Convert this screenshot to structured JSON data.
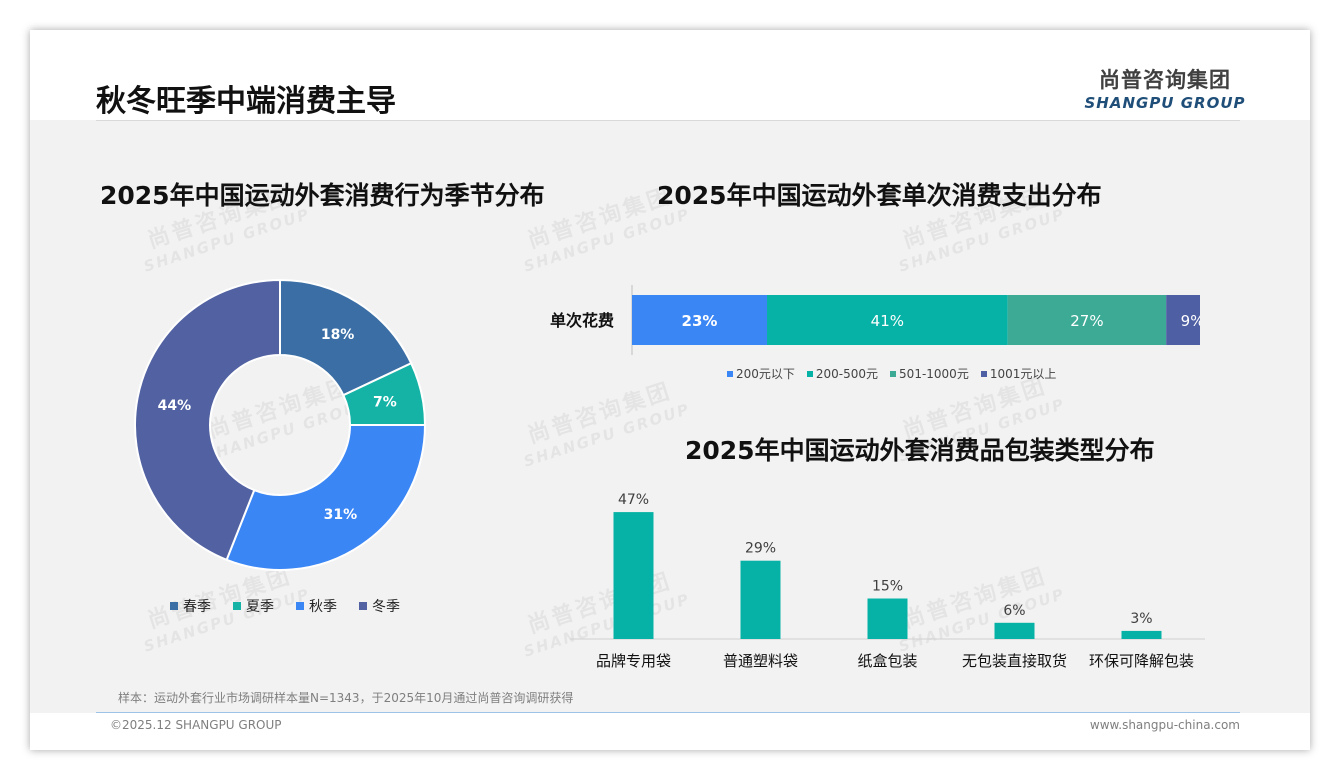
{
  "header": {
    "title": "秋冬旺季中端消费主导",
    "logo_cn": "尚普咨询集团",
    "logo_en": "SHANGPU GROUP"
  },
  "watermark": {
    "cn": "尚普咨询集团",
    "en": "SHANGPU GROUP"
  },
  "colors": {
    "spring": "#3a6ea5",
    "summer": "#14b3a6",
    "autumn": "#3b86f5",
    "winter": "#5161a1",
    "seg1": "#3b86f5",
    "seg2": "#06b1a5",
    "seg3": "#3daa96",
    "seg4": "#4e5fa3",
    "bar": "#06b1a5"
  },
  "chart_data": [
    {
      "type": "pie",
      "title": "2025年中国运动外套消费行为季节分布",
      "categories": [
        "春季",
        "夏季",
        "秋季",
        "冬季"
      ],
      "values": [
        18,
        7,
        31,
        44
      ],
      "labels": [
        "18%",
        "7%",
        "31%",
        "44%"
      ],
      "legend": "bottom"
    },
    {
      "type": "bar",
      "title": "2025年中国运动外套单次消费支出分布",
      "categories": [
        "单次花费"
      ],
      "series": [
        {
          "name": "200元以下",
          "values": [
            23
          ],
          "label": "23%"
        },
        {
          "name": "200-500元",
          "values": [
            41
          ],
          "label": "41%"
        },
        {
          "name": "501-1000元",
          "values": [
            27
          ],
          "label": "27%"
        },
        {
          "name": "1001元以上",
          "values": [
            9
          ],
          "label": "9%"
        }
      ],
      "legend": "bottom"
    },
    {
      "type": "bar",
      "title": "2025年中国运动外套消费品包装类型分布",
      "categories": [
        "品牌专用袋",
        "普通塑料袋",
        "纸盒包装",
        "无包装直接取货",
        "环保可降解包装"
      ],
      "values": [
        47,
        29,
        15,
        6,
        3
      ],
      "labels": [
        "47%",
        "29%",
        "15%",
        "6%",
        "3%"
      ],
      "ylim": [
        0,
        50
      ]
    }
  ],
  "footer": {
    "sample": "样本：运动外套行业市场调研样本量N=1343，于2025年10月通过尚普咨询调研获得",
    "copyright": "©2025.12 SHANGPU GROUP",
    "website": "www.shangpu-china.com"
  }
}
